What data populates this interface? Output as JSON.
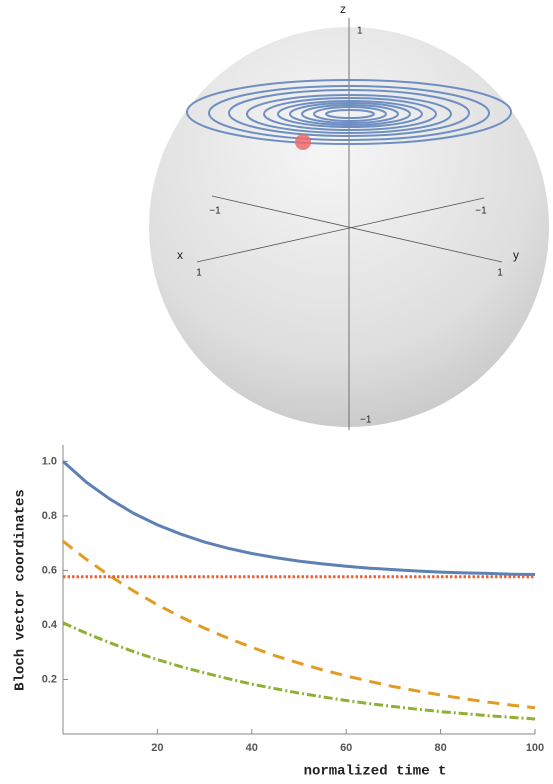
{
  "bloch_sphere": {
    "axis_labels": [
      "z",
      "x",
      "y"
    ],
    "tick_labels": [
      "1",
      "−1",
      "−1",
      "1",
      "1",
      "−1"
    ]
  },
  "chart_data": {
    "type": "line",
    "x_label": "normalized time t",
    "y_label": "Bloch vector coordinates",
    "x": [
      0,
      5,
      10,
      15,
      20,
      25,
      30,
      35,
      40,
      45,
      50,
      55,
      60,
      65,
      70,
      75,
      80,
      85,
      90,
      95,
      100
    ],
    "xlim": [
      0,
      100
    ],
    "ylim": [
      0,
      1.06
    ],
    "xticks": [
      20,
      40,
      60,
      80,
      100
    ],
    "yticks": [
      0.2,
      0.4,
      0.6,
      0.8,
      {
        "value": 1,
        "label": "1.0"
      }
    ],
    "series": [
      {
        "color": "#5e81b5",
        "dash": "solid",
        "values": [
          1.0,
          0.923,
          0.861,
          0.809,
          0.767,
          0.733,
          0.704,
          0.681,
          0.662,
          0.647,
          0.634,
          0.624,
          0.615,
          0.608,
          0.603,
          0.598,
          0.594,
          0.591,
          0.589,
          0.586,
          0.585
        ]
      },
      {
        "color": "#e19c24",
        "dash": "dashed",
        "values": [
          0.707,
          0.64,
          0.579,
          0.524,
          0.474,
          0.429,
          0.388,
          0.351,
          0.318,
          0.287,
          0.26,
          0.235,
          0.213,
          0.193,
          0.174,
          0.158,
          0.143,
          0.129,
          0.117,
          0.106,
          0.096
        ]
      },
      {
        "color": "#8fb032",
        "dash": "dashdot",
        "values": [
          0.408,
          0.369,
          0.334,
          0.302,
          0.273,
          0.247,
          0.224,
          0.203,
          0.183,
          0.166,
          0.15,
          0.136,
          0.123,
          0.111,
          0.101,
          0.091,
          0.082,
          0.075,
          0.067,
          0.061,
          0.055
        ]
      },
      {
        "color": "#eb6235",
        "dash": "dotted",
        "values": [
          0.577,
          0.577,
          0.577,
          0.577,
          0.577,
          0.577,
          0.577,
          0.577,
          0.577,
          0.577,
          0.577,
          0.577,
          0.577,
          0.577,
          0.577,
          0.577,
          0.577,
          0.577,
          0.577,
          0.577,
          0.577
        ]
      }
    ]
  }
}
